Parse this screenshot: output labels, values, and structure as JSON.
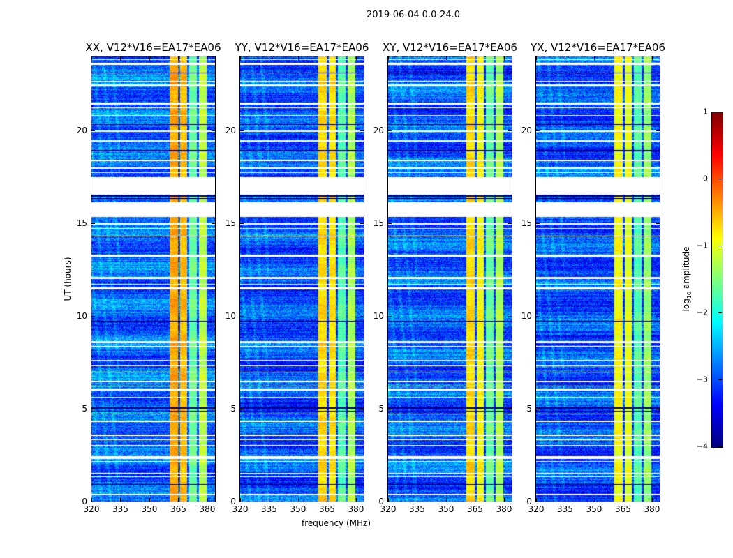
{
  "chart_data": {
    "type": "heatmap",
    "title": "2019-06-04 0.0-24.0",
    "xlabel": "frequency (MHz)",
    "ylabel": "UT (hours)",
    "xlim": [
      320,
      384
    ],
    "ylim": [
      0,
      24
    ],
    "xticks": [
      "320",
      "335",
      "350",
      "365",
      "380"
    ],
    "xtick_values": [
      320,
      335,
      350,
      365,
      380
    ],
    "yticks": [
      "0",
      "5",
      "10",
      "15",
      "20"
    ],
    "ytick_values": [
      0,
      5,
      10,
      15,
      20
    ],
    "panels": [
      {
        "title": "XX, V12*V16=EA17*EA06",
        "band_levels": [
          -0.45,
          -0.55,
          -1.6,
          -1.2
        ],
        "base": -2.9
      },
      {
        "title": "YY, V12*V16=EA17*EA06",
        "band_levels": [
          -0.7,
          -0.75,
          -1.7,
          -1.3
        ],
        "base": -3.0
      },
      {
        "title": "XY, V12*V16=EA17*EA06",
        "band_levels": [
          -0.7,
          -0.9,
          -1.6,
          -1.3
        ],
        "base": -2.95
      },
      {
        "title": "YX, V12*V16=EA17*EA06",
        "band_levels": [
          -0.9,
          -1.0,
          -1.7,
          -1.4
        ],
        "base": -3.0
      }
    ],
    "bands_mhz": [
      [
        360.4,
        364.8
      ],
      [
        366,
        369.6
      ],
      [
        370.6,
        374.6
      ],
      [
        375.6,
        379.6
      ]
    ],
    "flagged_hours": [
      [
        23.55,
        23.65
      ],
      [
        23.8,
        23.86
      ],
      [
        22.4,
        22.5
      ],
      [
        22.65,
        22.7
      ],
      [
        21.4,
        21.5
      ],
      [
        21.2,
        21.25
      ],
      [
        20.8,
        20.85
      ],
      [
        19.95,
        20.0
      ],
      [
        19.4,
        19.5
      ],
      [
        18.35,
        18.45
      ],
      [
        17.95,
        18.0
      ],
      [
        17.7,
        17.75
      ],
      [
        17.45,
        17.5
      ],
      [
        16.55,
        17.45
      ],
      [
        16.0,
        16.15
      ],
      [
        15.35,
        16.0
      ],
      [
        14.95,
        15.0
      ],
      [
        14.7,
        14.75
      ],
      [
        14.3,
        14.35
      ],
      [
        13.2,
        13.3
      ],
      [
        12.0,
        12.1
      ],
      [
        11.7,
        11.75
      ],
      [
        11.45,
        11.55
      ],
      [
        8.55,
        8.65
      ],
      [
        8.35,
        8.4
      ],
      [
        7.6,
        7.65
      ],
      [
        7.3,
        7.35
      ],
      [
        6.95,
        7.0
      ],
      [
        6.45,
        6.5
      ],
      [
        6.2,
        6.25
      ],
      [
        6.0,
        6.1
      ],
      [
        5.6,
        5.65
      ],
      [
        4.7,
        4.75
      ],
      [
        4.3,
        4.35
      ],
      [
        3.55,
        3.6
      ],
      [
        3.3,
        3.35
      ],
      [
        3.0,
        3.05
      ],
      [
        2.3,
        2.45
      ],
      [
        2.15,
        2.2
      ],
      [
        1.5,
        1.55
      ],
      [
        1.3,
        1.35
      ],
      [
        0.35,
        0.4
      ]
    ],
    "dark_hours": [
      [
        16.3,
        16.35
      ],
      [
        16.45,
        16.5
      ],
      [
        9.7,
        9.75
      ],
      [
        5.0,
        5.06
      ],
      [
        4.85,
        4.9
      ],
      [
        18.9,
        18.95
      ],
      [
        20.3,
        20.35
      ],
      [
        23.1,
        23.15
      ],
      [
        0.9,
        0.95
      ]
    ],
    "colorbar": {
      "label": "log10 amplitude",
      "label_main": "log",
      "label_sub": "10",
      "label_rest": " amplitude",
      "range": [
        -4,
        1
      ],
      "ticks": [
        "1",
        "0",
        "−1",
        "−2",
        "−3",
        "−4"
      ],
      "tick_values": [
        1,
        0,
        -1,
        -2,
        -3,
        -4
      ],
      "colormap": "jet"
    }
  }
}
